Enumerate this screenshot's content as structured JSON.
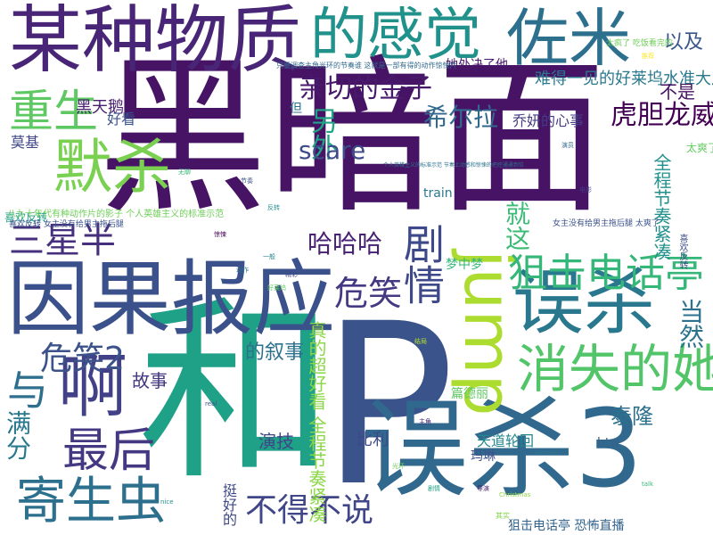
{
  "word_cloud": {
    "background": "#ffffff",
    "words": [
      {
        "text": "黑暗面",
        "color": "#471365"
      },
      {
        "text": "P",
        "color": "#3a538b"
      },
      {
        "text": "和",
        "color": "#1fa187"
      },
      {
        "text": "误杀3",
        "color": "#31688e"
      },
      {
        "text": "因果报应",
        "color": "#3b518b"
      },
      {
        "text": "某种物质",
        "color": "#482576"
      },
      {
        "text": "的感觉",
        "color": "#21918c"
      },
      {
        "text": "佐米",
        "color": "#2d708e"
      },
      {
        "text": "误杀",
        "color": "#2a788e"
      },
      {
        "text": "jump",
        "color": "#addc30"
      },
      {
        "text": "啊",
        "color": "#424086"
      },
      {
        "text": "默杀",
        "color": "#7ad151"
      },
      {
        "text": "重生",
        "color": "#5ec962"
      },
      {
        "text": "寄生虫",
        "color": "#2d708e"
      },
      {
        "text": "最后",
        "color": "#453882"
      },
      {
        "text": "消失的她",
        "color": "#52c569"
      },
      {
        "text": "狙击电话亭",
        "color": "#35b779"
      },
      {
        "text": "剧情",
        "color": "#3e4989"
      },
      {
        "text": "三星半",
        "color": "#46307e"
      },
      {
        "text": "与",
        "color": "#2e6f8e"
      },
      {
        "text": "危笑2",
        "color": "#3b528b"
      },
      {
        "text": "危笑",
        "color": "#443983"
      },
      {
        "text": "不得不说",
        "color": "#404688"
      },
      {
        "text": "亲切的金子",
        "color": "#481a6c"
      },
      {
        "text": "虎胆龙威",
        "color": "#440154"
      },
      {
        "text": "希尔拉",
        "color": "#31688e"
      },
      {
        "text": "哈哈哈",
        "color": "#482173"
      },
      {
        "text": "另外",
        "color": "#20a386"
      },
      {
        "text": "以及",
        "color": "#39558c"
      },
      {
        "text": "scare",
        "color": "#3e4a89"
      },
      {
        "text": "满分",
        "color": "#2a788e"
      },
      {
        "text": "当然",
        "color": "#2c728e"
      },
      {
        "text": "就这",
        "color": "#3bbb75"
      },
      {
        "text": "全程节奏紧凑",
        "color": "#21908d"
      },
      {
        "text": "真的超好看 全程节奏紧凑",
        "color": "#8bd646"
      },
      {
        "text": "黑天鹅",
        "color": "#481f70"
      },
      {
        "text": "的叙事",
        "color": "#2c718e"
      },
      {
        "text": "泰隆",
        "color": "#2c718e"
      },
      {
        "text": "演技",
        "color": "#3f4788"
      },
      {
        "text": "比利",
        "color": "#3e4989"
      },
      {
        "text": "故事",
        "color": "#453781"
      },
      {
        "text": "乔妍的心事",
        "color": "#443b84"
      },
      {
        "text": "难得一见的好莱坞水准大片",
        "color": "#2a788e"
      },
      {
        "text": "狙击电话亭 恐怖直播",
        "color": "#33638d"
      },
      {
        "text": "天道轮回",
        "color": "#23888e"
      },
      {
        "text": "不是",
        "color": "#471164"
      },
      {
        "text": "挺好的",
        "color": "#3f4889"
      },
      {
        "text": "梦中梦",
        "color": "#35b779"
      },
      {
        "text": "她处决了他",
        "color": "#48186a"
      },
      {
        "text": "好看",
        "color": "#3a548c"
      },
      {
        "text": "莫基",
        "color": "#3f4788"
      },
      {
        "text": "但",
        "color": "#2c718e"
      },
      {
        "text": "btw",
        "color": "#33638d"
      },
      {
        "text": "train",
        "color": "#2a788e"
      },
      {
        "text": "玛琳",
        "color": "#3b528b"
      },
      {
        "text": "篇德丽",
        "color": "#5ec962"
      },
      {
        "text": "喜欢反转",
        "color": "#1fa187"
      },
      {
        "text": "太爽了",
        "color": "#63cb5f"
      },
      {
        "text": "八九十年代有种动作片的影子 个人英雄主义的标准示范",
        "color": "#6ece58"
      },
      {
        "text": "喜欢反转 女主没有给男主拖后腿",
        "color": "#3b528b"
      },
      {
        "text": "只要调查主角光环的节奏谁 这就是一部有得的动作惊悚片",
        "color": "#31688e"
      },
      {
        "text": "太疯了 吃饭看完的",
        "color": "#6ece58"
      },
      {
        "text": "女主没有给男主拖后腿 太爽了",
        "color": "#3b528b"
      },
      {
        "text": "Christmas",
        "color": "#8fd744"
      },
      {
        "text": "其实",
        "color": "#85d54a"
      },
      {
        "text": "个人英雄主义的标准示范 节奏上动感和惊悚的把控通通到位",
        "color": "#2c718e"
      },
      {
        "text": "喜欢反转",
        "color": "#3b518b"
      }
    ],
    "small_words": [
      {
        "text": "无聊",
        "color": "#35b779"
      },
      {
        "text": "节奏",
        "color": "#3b528b"
      },
      {
        "text": "反转",
        "color": "#21918c"
      },
      {
        "text": "惊悚",
        "color": "#440154"
      },
      {
        "text": "动作",
        "color": "#2c718e"
      },
      {
        "text": "好莱坞",
        "color": "#5ec962"
      },
      {
        "text": "主角",
        "color": "#482878"
      },
      {
        "text": "光环",
        "color": "#6ece58"
      },
      {
        "text": "剧情",
        "color": "#1fa187"
      },
      {
        "text": "演员",
        "color": "#31688e"
      },
      {
        "text": "电影",
        "color": "#443983"
      },
      {
        "text": "推荐",
        "color": "#fde725"
      },
      {
        "text": "一般",
        "color": "#26828e"
      },
      {
        "text": "精彩",
        "color": "#3e4989"
      },
      {
        "text": "结局",
        "color": "#b5de2b"
      },
      {
        "text": "导演",
        "color": "#481f70"
      },
      {
        "text": "Woman",
        "color": "#2a788e"
      },
      {
        "text": "talk",
        "color": "#35b779"
      },
      {
        "text": "real",
        "color": "#3b528b"
      },
      {
        "text": "nice",
        "color": "#21918c"
      }
    ]
  }
}
